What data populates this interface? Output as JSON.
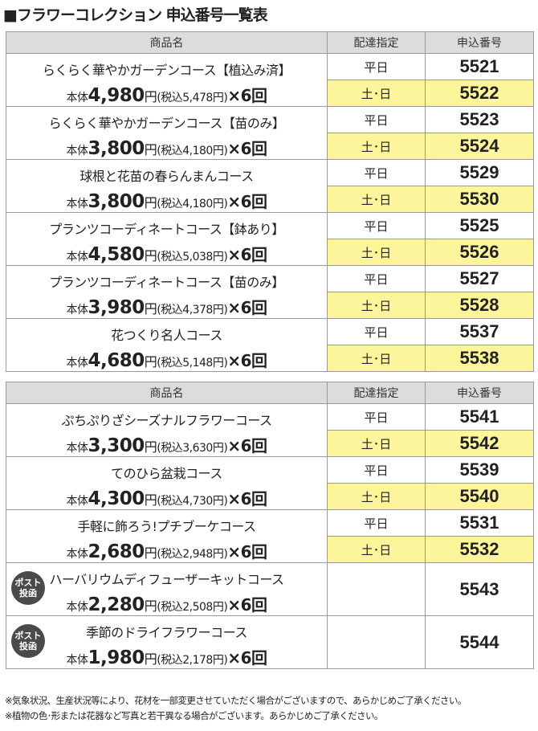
{
  "title": "■フラワーコレクション 申込番号一覧表",
  "headers": {
    "name": "商品名",
    "delivery": "配達指定",
    "number": "申込番号"
  },
  "weekday": "平日",
  "weekend": "土･日",
  "price_prefix": "本体",
  "yen": "円",
  "tax_open": "(税込",
  "tax_close": "円)",
  "times": "×6回",
  "badge_line1": "ポスト",
  "badge_line2": "投函",
  "section1": [
    {
      "name": "らくらく華やかガーデンコース【植込み済】",
      "price": "4,980",
      "tax": "5,478",
      "n1": "5521",
      "n2": "5522"
    },
    {
      "name": "らくらく華やかガーデンコース【苗のみ】",
      "price": "3,800",
      "tax": "4,180",
      "n1": "5523",
      "n2": "5524"
    },
    {
      "name": "球根と花苗の春らんまんコース",
      "price": "3,800",
      "tax": "4,180",
      "n1": "5529",
      "n2": "5530"
    },
    {
      "name": "プランツコーディネートコース【鉢あり】",
      "price": "4,580",
      "tax": "5,038",
      "n1": "5525",
      "n2": "5526"
    },
    {
      "name": "プランツコーディネートコース【苗のみ】",
      "price": "3,980",
      "tax": "4,378",
      "n1": "5527",
      "n2": "5528"
    },
    {
      "name": "花つくり名人コース",
      "price": "4,680",
      "tax": "5,148",
      "n1": "5537",
      "n2": "5538"
    }
  ],
  "section2": [
    {
      "name": "ぷちぷりざシーズナルフラワーコース",
      "price": "3,300",
      "tax": "3,630",
      "n1": "5541",
      "n2": "5542"
    },
    {
      "name": "てのひら盆栽コース",
      "price": "4,300",
      "tax": "4,730",
      "n1": "5539",
      "n2": "5540"
    },
    {
      "name": "手軽に飾ろう!プチブーケコース",
      "price": "2,680",
      "tax": "2,948",
      "n1": "5531",
      "n2": "5532"
    }
  ],
  "post": [
    {
      "name": "ハーバリウムディフューザーキットコース",
      "price": "2,280",
      "tax": "2,508",
      "n": "5543"
    },
    {
      "name": "季節のドライフラワーコース",
      "price": "1,980",
      "tax": "2,178",
      "n": "5544"
    }
  ],
  "notes": [
    "※気象状況、生産状況等により、花材を一部変更させていただく場合がございますので、あらかじめご了承ください。",
    "※植物の色･形または花器など写真と若干異なる場合がございます。あらかじめご了承ください。"
  ]
}
